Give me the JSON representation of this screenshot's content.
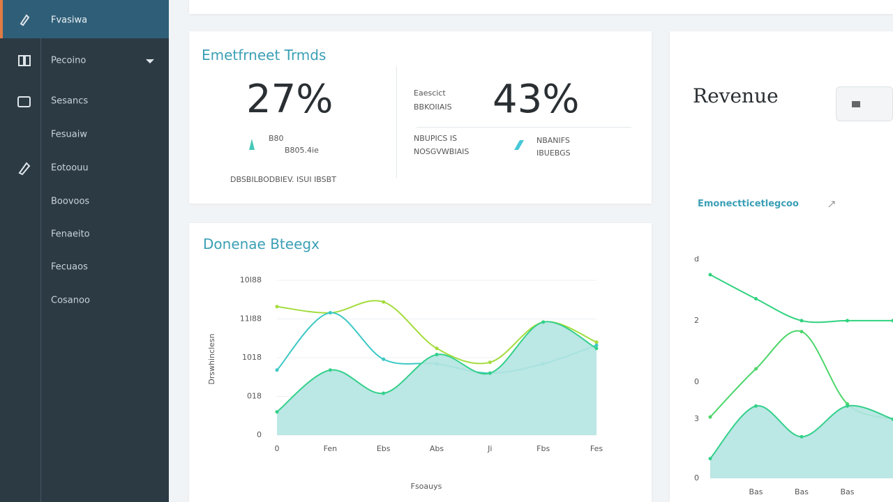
{
  "sidebar": {
    "items": [
      "Fvasiwa",
      "Pecoino",
      "Sesancs",
      "Fesuaiw",
      "Eotoouu",
      "Boovoos",
      "Fenaeito",
      "Fecuaos",
      "Cosanoo"
    ]
  },
  "engagement": {
    "title": "Emetfrneet Trmds",
    "stat1": {
      "value": "27%",
      "label1": "B80",
      "label2": "B805.4ie"
    },
    "footer": "DBSBILBODBIEV. ISUI IBSBT",
    "stat2": {
      "caption1": "Eaescict",
      "caption2": "BBKOIIAIS",
      "value": "43%",
      "sub1": "NBUPICS IS",
      "sub2": "NOSGVWBIAIS",
      "sub3": "NBANIFS",
      "sub4": "IBUEBGS"
    }
  },
  "usage_chart": {
    "type": "line",
    "title": "Donenae Bteegx",
    "y_label": "Drswhinclesn",
    "x_label": "Fsoauys",
    "categories": [
      "0",
      "Fen",
      "Ebs",
      "Abs",
      "Ji",
      "Fbs",
      "Fes"
    ],
    "ylim": [
      0,
      100
    ],
    "yticks": [
      {
        "value": 100,
        "label": "10I88"
      },
      {
        "value": 75,
        "label": "11I88"
      },
      {
        "value": 50,
        "label": "1018"
      },
      {
        "value": 25,
        "label": "018"
      },
      0
    ],
    "grid": true,
    "series": [
      {
        "color": "#a3dc3c",
        "values": [
          83,
          79,
          86,
          56,
          47,
          73,
          60
        ]
      },
      {
        "color": "#3cc8c4",
        "values": [
          42,
          79,
          49,
          46,
          40,
          46,
          58
        ]
      },
      {
        "color": "#33d08a",
        "fill": "#b4e4e2",
        "values": [
          15,
          42,
          27,
          52,
          40,
          73,
          56
        ]
      }
    ]
  },
  "revenue_chart": {
    "type": "line",
    "title": "Revenue",
    "subtitle": "Emonectticetlegcoo",
    "categories": [
      null,
      "Bas",
      "Bas",
      "Bas",
      null
    ],
    "ylim": [
      0,
      100
    ],
    "yticks": [
      {
        "value": 100,
        "label": "d"
      },
      {
        "value": 72,
        "label": "2"
      },
      {
        "value": 44,
        "label": "0"
      },
      {
        "value": 27,
        "label": "3"
      },
      0
    ],
    "series": [
      {
        "color": "#2fd27e",
        "values": [
          93,
          82,
          72,
          72,
          72
        ]
      },
      {
        "color": "#4cd66a",
        "values": [
          28,
          50,
          67,
          34,
          27
        ]
      },
      {
        "color": "#33d08a",
        "fill": "#b4e4e2",
        "values": [
          9,
          33,
          19,
          33,
          27
        ]
      }
    ]
  }
}
